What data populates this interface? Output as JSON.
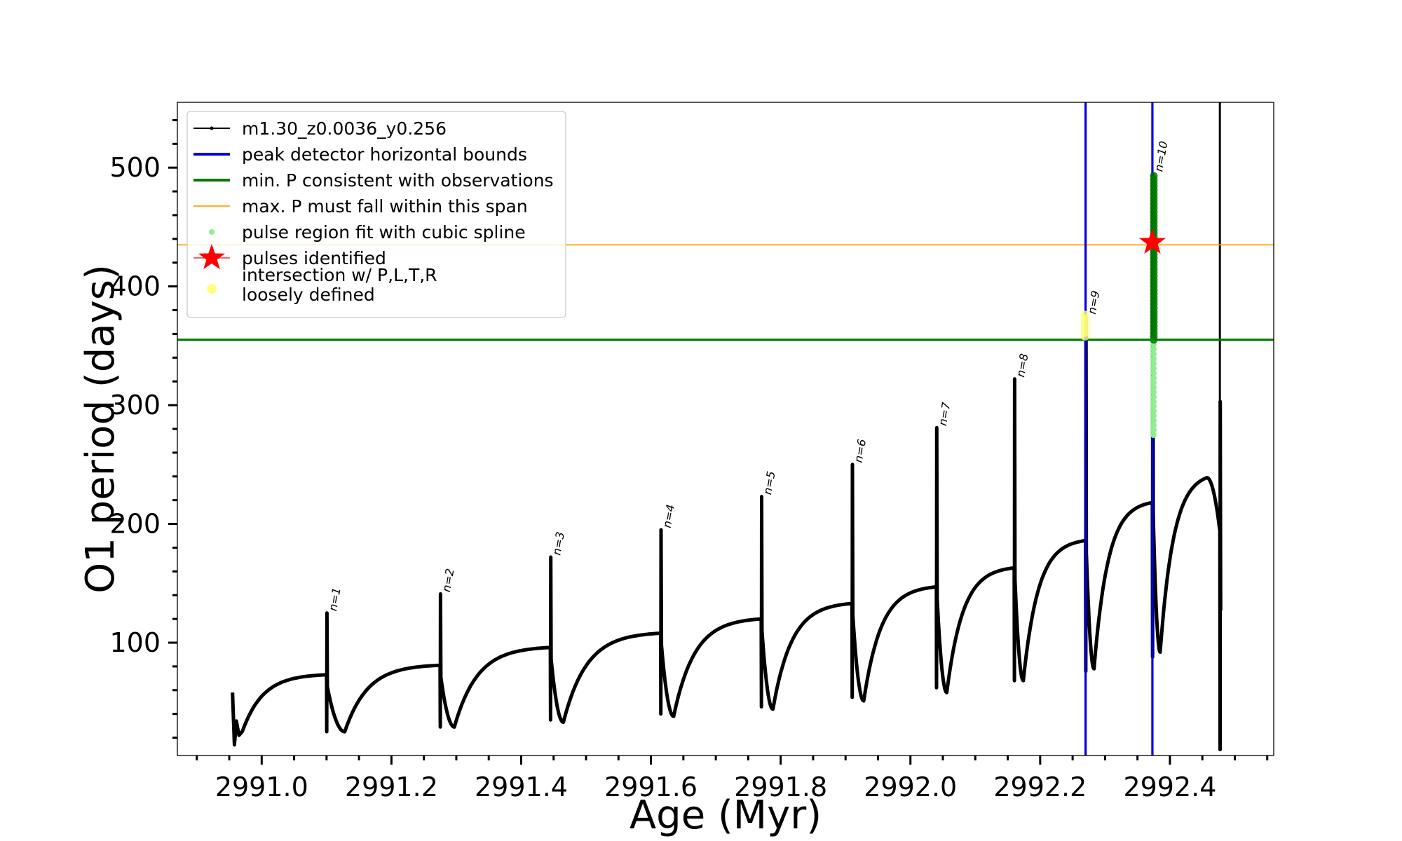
{
  "chart_data": {
    "type": "line",
    "title": "",
    "xlabel": "Age (Myr)",
    "ylabel": "O1 period (days)",
    "xlim": [
      2990.87,
      2992.56
    ],
    "ylim": [
      5,
      555
    ],
    "xticks": [
      2991.0,
      2991.2,
      2991.4,
      2991.6,
      2991.8,
      2992.0,
      2992.2,
      2992.4
    ],
    "xtick_labels": [
      "2991.0",
      "2991.2",
      "2991.4",
      "2991.6",
      "2991.8",
      "2992.0",
      "2992.2",
      "2992.4"
    ],
    "yticks": [
      100,
      200,
      300,
      400,
      500
    ],
    "ytick_labels": [
      "100",
      "200",
      "300",
      "400",
      "500"
    ],
    "grid": false,
    "legend_position": "top-left",
    "pulses": [
      {
        "label": "n=1",
        "x": 2991.1,
        "base": 25,
        "peak": 125,
        "plateau": 73,
        "dip": 25,
        "dip_dx": 0.028
      },
      {
        "label": "n=2",
        "x": 2991.275,
        "base": 29,
        "peak": 141,
        "plateau": 81,
        "dip": 29,
        "dip_dx": 0.022
      },
      {
        "label": "n=3",
        "x": 2991.445,
        "base": 35,
        "peak": 172,
        "plateau": 96,
        "dip": 33,
        "dip_dx": 0.02
      },
      {
        "label": "n=4",
        "x": 2991.615,
        "base": 40,
        "peak": 195,
        "plateau": 108,
        "dip": 38,
        "dip_dx": 0.02
      },
      {
        "label": "n=5",
        "x": 2991.77,
        "base": 46,
        "peak": 223,
        "plateau": 120,
        "dip": 44,
        "dip_dx": 0.018
      },
      {
        "label": "n=6",
        "x": 2991.91,
        "base": 54,
        "peak": 250,
        "plateau": 133,
        "dip": 51,
        "dip_dx": 0.018
      },
      {
        "label": "n=7",
        "x": 2992.04,
        "base": 62,
        "peak": 281,
        "plateau": 147,
        "dip": 58,
        "dip_dx": 0.016
      },
      {
        "label": "n=8",
        "x": 2992.16,
        "base": 68,
        "peak": 322,
        "plateau": 163,
        "dip": 68,
        "dip_dx": 0.014
      },
      {
        "label": "n=9",
        "x": 2992.27,
        "base": 76,
        "peak": 375,
        "plateau": 186,
        "dip": 78,
        "dip_dx": 0.013
      },
      {
        "label": "n=10",
        "x": 2992.373,
        "base": 88,
        "peak": 495,
        "plateau": 218,
        "dip": 92,
        "dip_dx": 0.012
      }
    ],
    "series": [
      {
        "name": "m1.30_z0.0036_y0.256",
        "color": "#000000",
        "kind": "line-with-markers"
      },
      {
        "name": "peak detector horizontal bounds",
        "color": "#0000dd",
        "kind": "vline",
        "x": [
          2992.27,
          2992.373
        ]
      },
      {
        "name": "min. P consistent with observations",
        "color": "#007a00",
        "kind": "hline",
        "y": 355
      },
      {
        "name": "max. P must fall within this span",
        "color": "#ffa500",
        "kind": "hline",
        "y": 435
      },
      {
        "name": "pulse region fit with cubic spline",
        "color": "#90ee90",
        "kind": "scatter"
      },
      {
        "name": "pulses identified",
        "color": "#ff0000",
        "kind": "star",
        "points": [
          {
            "x": 2992.373,
            "y": 437
          }
        ]
      },
      {
        "name": "intersection w/ P,L,T,R\nloosely defined",
        "color": "#ffff80",
        "kind": "scatter"
      }
    ],
    "start": {
      "x": 2990.955,
      "y": 20
    },
    "end": {
      "x": 2992.477,
      "peak": 303,
      "plateau": 239,
      "final": 127
    }
  }
}
